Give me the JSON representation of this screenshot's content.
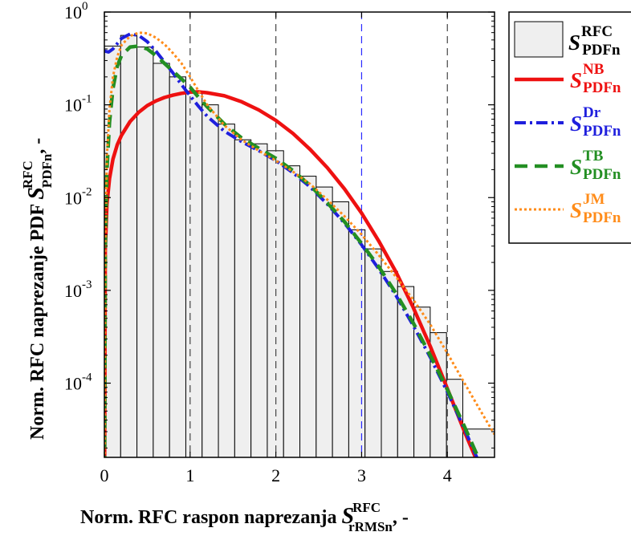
{
  "chart_data": {
    "type": "bar",
    "xlim": [
      0,
      4.55
    ],
    "ylim_log10": [
      -4.8,
      0
    ],
    "y_scale": "log",
    "xticks": [
      {
        "v": 0,
        "label": "0"
      },
      {
        "v": 1,
        "label": "1"
      },
      {
        "v": 2,
        "label": "2"
      },
      {
        "v": 3,
        "label": "3"
      },
      {
        "v": 4,
        "label": "4"
      }
    ],
    "yticks": [
      {
        "v": 0,
        "mant": "10",
        "exp": "0"
      },
      {
        "v": -1,
        "mant": "10",
        "exp": "-1"
      },
      {
        "v": -2,
        "mant": "10",
        "exp": "-2"
      },
      {
        "v": -3,
        "mant": "10",
        "exp": "-3"
      },
      {
        "v": -4,
        "mant": "10",
        "exp": "-4"
      }
    ],
    "xlabel": {
      "main": "Norm. RFC raspon naprezanja ",
      "sym": "S",
      "sup": "RFC",
      "sub": "rRMSn",
      "tail": ", -"
    },
    "ylabel": {
      "main": "Norm. RFC naprezanje PDF ",
      "sym": "S",
      "sup": "RFC",
      "sub": "PDFn",
      "tail": ", -"
    },
    "vlines": [
      {
        "x": 1,
        "color": "#444444"
      },
      {
        "x": 2,
        "color": "#444444"
      },
      {
        "x": 3,
        "color": "#2a2aff"
      },
      {
        "x": 4,
        "color": "#444444"
      }
    ],
    "histogram": {
      "edges": [
        0,
        0.19,
        0.38,
        0.57,
        0.76,
        0.95,
        1.14,
        1.33,
        1.52,
        1.71,
        1.9,
        2.09,
        2.28,
        2.47,
        2.66,
        2.85,
        3.04,
        3.23,
        3.42,
        3.61,
        3.8,
        3.99,
        4.18,
        4.55
      ],
      "values": [
        0.43,
        0.56,
        0.42,
        0.28,
        0.2,
        0.135,
        0.1,
        0.062,
        0.042,
        0.038,
        0.032,
        0.022,
        0.017,
        0.013,
        0.009,
        0.0045,
        0.0028,
        0.0016,
        0.0011,
        0.00066,
        0.00035,
        0.00011,
        3.2e-05
      ],
      "fill": "#efefef"
    },
    "series": [
      {
        "name_sup": "NB",
        "color": "#ee1111",
        "dash": "",
        "width": 4.5,
        "x": [
          0.003,
          0.01,
          0.03,
          0.06,
          0.1,
          0.15,
          0.2,
          0.3,
          0.4,
          0.5,
          0.6,
          0.7,
          0.8,
          0.9,
          1.0,
          1.1,
          1.2,
          1.4,
          1.6,
          1.8,
          2.0,
          2.2,
          2.4,
          2.6,
          2.8,
          3.0,
          3.2,
          3.4,
          3.6,
          3.8,
          4.0,
          4.2,
          4.4,
          4.55
        ],
        "y": [
          1.2e-05,
          0.0027,
          0.0085,
          0.016,
          0.026,
          0.037,
          0.047,
          0.066,
          0.083,
          0.098,
          0.11,
          0.12,
          0.127,
          0.133,
          0.137,
          0.138,
          0.135,
          0.125,
          0.108,
          0.088,
          0.068,
          0.049,
          0.033,
          0.021,
          0.0124,
          0.0068,
          0.0034,
          0.00158,
          0.00066,
          0.00025,
          8.7e-05,
          3e-05,
          1.1e-05,
          5.5e-06
        ]
      },
      {
        "name_sup": "Dr",
        "color": "#1f1fdd",
        "dash": "14 5 3 5",
        "width": 4,
        "x": [
          0,
          0.05,
          0.1,
          0.2,
          0.3,
          0.4,
          0.5,
          0.6,
          0.7,
          0.8,
          0.9,
          1.0,
          1.1,
          1.2,
          1.4,
          1.6,
          1.8,
          2.0,
          2.2,
          2.4,
          2.6,
          2.8,
          3.0,
          3.2,
          3.4,
          3.6,
          3.8,
          4.0,
          4.2,
          4.4,
          4.55
        ],
        "y": [
          0.38,
          0.37,
          0.4,
          0.52,
          0.58,
          0.56,
          0.48,
          0.38,
          0.29,
          0.22,
          0.165,
          0.125,
          0.096,
          0.075,
          0.052,
          0.04,
          0.032,
          0.025,
          0.0185,
          0.013,
          0.0085,
          0.0053,
          0.0031,
          0.0017,
          0.00088,
          0.00042,
          0.00019,
          8e-05,
          3.2e-05,
          1.2e-05,
          5.5e-06
        ]
      },
      {
        "name_sup": "TB",
        "color": "#238f23",
        "dash": "16 9",
        "width": 4.5,
        "x": [
          0.003,
          0.01,
          0.03,
          0.06,
          0.1,
          0.15,
          0.2,
          0.3,
          0.4,
          0.5,
          0.6,
          0.7,
          0.8,
          0.9,
          1.0,
          1.1,
          1.2,
          1.4,
          1.6,
          1.8,
          2.0,
          2.2,
          2.4,
          2.6,
          2.8,
          3.0,
          3.2,
          3.4,
          3.6,
          3.8,
          4.0,
          4.2,
          4.4,
          4.55
        ],
        "y": [
          1.2e-05,
          0.0028,
          0.02,
          0.065,
          0.15,
          0.26,
          0.34,
          0.42,
          0.43,
          0.4,
          0.34,
          0.28,
          0.23,
          0.19,
          0.155,
          0.12,
          0.095,
          0.062,
          0.044,
          0.034,
          0.0265,
          0.0195,
          0.0135,
          0.0088,
          0.0055,
          0.0032,
          0.0018,
          0.00093,
          0.00045,
          0.0002,
          8.5e-05,
          3.4e-05,
          1.3e-05,
          5.5e-06
        ]
      },
      {
        "name_sup": "JM",
        "color": "#ff8c1a",
        "dash": "3 3",
        "width": 3,
        "x": [
          0.003,
          0.01,
          0.03,
          0.06,
          0.1,
          0.15,
          0.2,
          0.3,
          0.4,
          0.5,
          0.6,
          0.7,
          0.8,
          0.9,
          1.0,
          1.1,
          1.2,
          1.4,
          1.6,
          1.8,
          2.0,
          2.2,
          2.4,
          2.6,
          2.8,
          3.0,
          3.2,
          3.4,
          3.6,
          3.8,
          4.0,
          4.2,
          4.4,
          4.55
        ],
        "y": [
          1.2e-05,
          0.003,
          0.028,
          0.09,
          0.2,
          0.33,
          0.44,
          0.55,
          0.6,
          0.59,
          0.53,
          0.45,
          0.36,
          0.28,
          0.2,
          0.14,
          0.1,
          0.06,
          0.042,
          0.032,
          0.025,
          0.019,
          0.014,
          0.0095,
          0.0063,
          0.004,
          0.0024,
          0.0014,
          0.0008,
          0.00043,
          0.00021,
          0.0001,
          4.8e-05,
          2.8e-05
        ]
      }
    ],
    "legend": {
      "position": "top-right",
      "hist_sup": "RFC",
      "sub": "PDFn",
      "sym": "S"
    }
  }
}
